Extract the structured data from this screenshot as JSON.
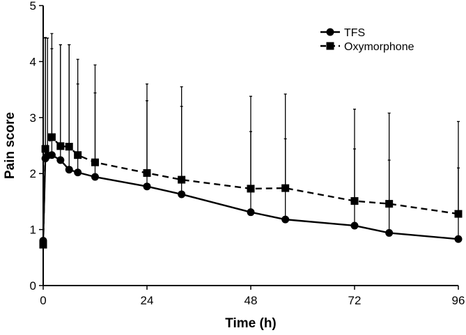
{
  "chart_data": {
    "type": "line",
    "xlabel": "Time (h)",
    "ylabel": "Pain score",
    "xlim": [
      0,
      96
    ],
    "ylim": [
      0,
      5
    ],
    "x_ticks": [
      "0",
      "24",
      "48",
      "72",
      "96"
    ],
    "y_ticks": [
      "0",
      "1",
      "2",
      "3",
      "4",
      "5"
    ],
    "grid": false,
    "legend_position": "top-right",
    "series": [
      {
        "name": "TFS",
        "marker": "circle",
        "line_style": "solid",
        "color": "#000000",
        "error_bars": "upper",
        "points": [
          {
            "x": 0,
            "y": 0.8,
            "err": 0.0
          },
          {
            "x": 0.5,
            "y": 2.27,
            "err": 2.15
          },
          {
            "x": 1,
            "y": 2.32,
            "err": 2.1
          },
          {
            "x": 2,
            "y": 2.33,
            "err": 1.9
          },
          {
            "x": 4,
            "y": 2.24,
            "err": 2.06
          },
          {
            "x": 6,
            "y": 2.07,
            "err": 2.23
          },
          {
            "x": 8,
            "y": 2.02,
            "err": 1.58
          },
          {
            "x": 12,
            "y": 1.94,
            "err": 1.5
          },
          {
            "x": 24,
            "y": 1.77,
            "err": 1.53
          },
          {
            "x": 32,
            "y": 1.63,
            "err": 1.57
          },
          {
            "x": 48,
            "y": 1.31,
            "err": 1.44
          },
          {
            "x": 56,
            "y": 1.18,
            "err": 1.44
          },
          {
            "x": 72,
            "y": 1.07,
            "err": 1.37
          },
          {
            "x": 80,
            "y": 0.94,
            "err": 1.3
          },
          {
            "x": 96,
            "y": 0.83,
            "err": 1.27
          }
        ]
      },
      {
        "name": "Oxymorphone",
        "marker": "square",
        "line_style": "dashed",
        "color": "#000000",
        "error_bars": "upper",
        "points": [
          {
            "x": 0,
            "y": 0.73,
            "err": 0.0
          },
          {
            "x": 0.5,
            "y": 2.44,
            "err": 1.99
          },
          {
            "x": 2,
            "y": 2.65,
            "err": 1.85
          },
          {
            "x": 4,
            "y": 2.49,
            "err": 1.81
          },
          {
            "x": 6,
            "y": 2.48,
            "err": 1.82
          },
          {
            "x": 8,
            "y": 2.33,
            "err": 1.71
          },
          {
            "x": 12,
            "y": 2.2,
            "err": 1.74
          },
          {
            "x": 24,
            "y": 2.01,
            "err": 1.59
          },
          {
            "x": 32,
            "y": 1.89,
            "err": 1.66
          },
          {
            "x": 48,
            "y": 1.73,
            "err": 1.65
          },
          {
            "x": 56,
            "y": 1.74,
            "err": 1.68
          },
          {
            "x": 72,
            "y": 1.51,
            "err": 1.64
          },
          {
            "x": 80,
            "y": 1.46,
            "err": 1.62
          },
          {
            "x": 96,
            "y": 1.28,
            "err": 1.65
          }
        ]
      }
    ]
  }
}
